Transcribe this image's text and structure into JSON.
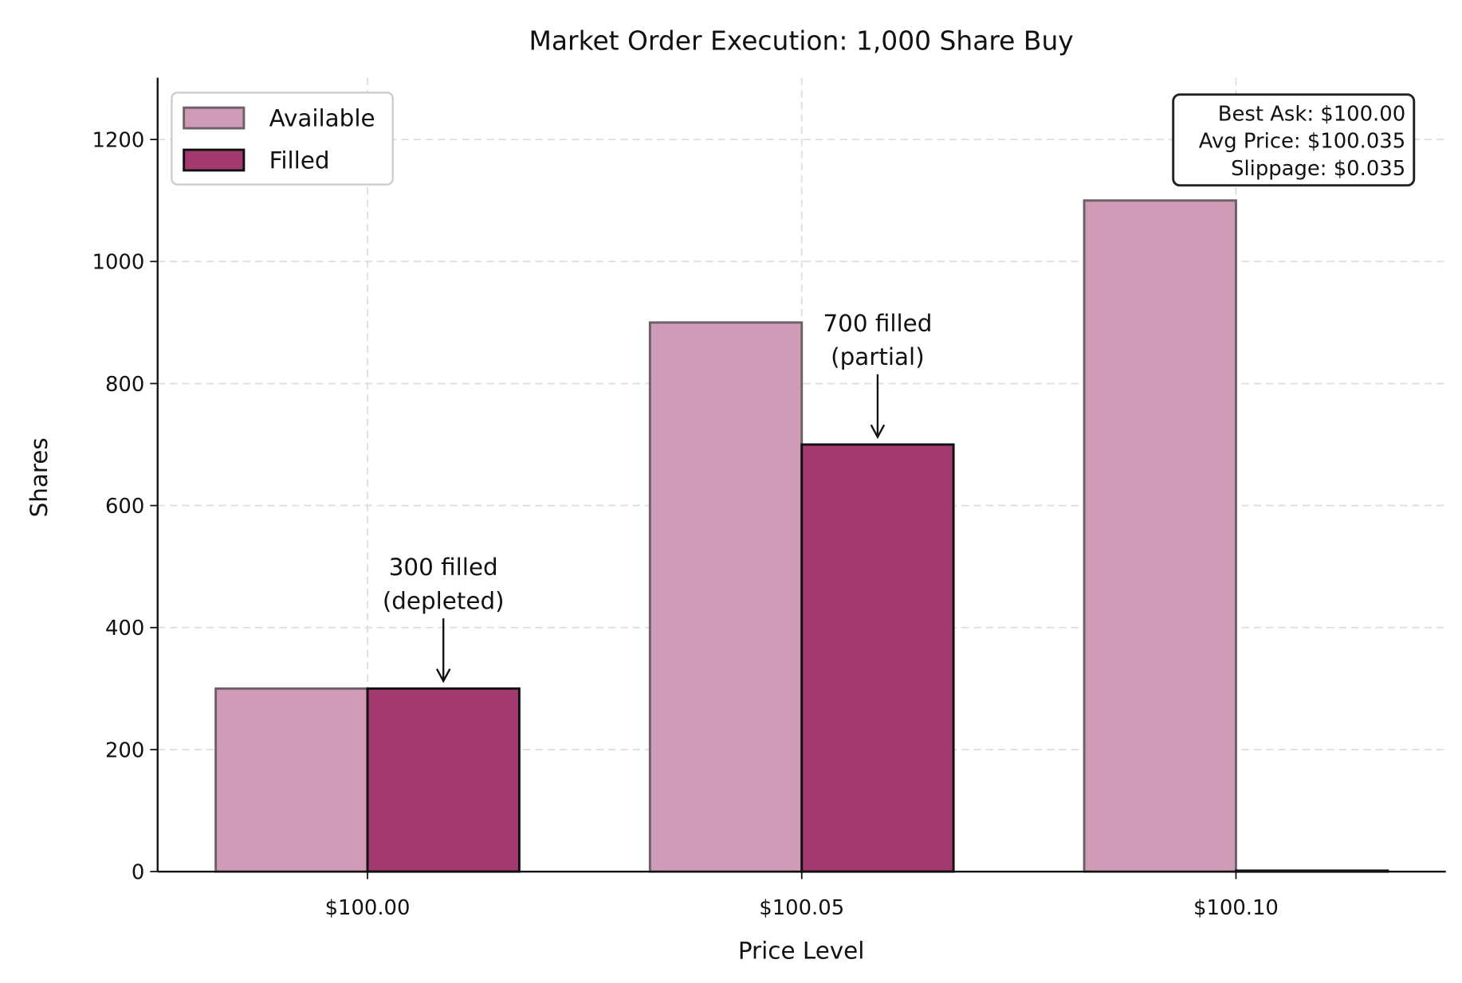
{
  "chart_data": {
    "type": "bar",
    "title": "Market Order Execution: 1,000 Share Buy",
    "xlabel": "Price Level",
    "ylabel": "Shares",
    "categories": [
      "$100.00",
      "$100.05",
      "$100.10"
    ],
    "series": [
      {
        "name": "Available",
        "values": [
          300,
          900,
          1100
        ],
        "color": "#d09bb7"
      },
      {
        "name": "Filled",
        "values": [
          300,
          700,
          0
        ],
        "color": "#a23a6f"
      }
    ],
    "ylim": [
      0,
      1300
    ],
    "yticks": [
      0,
      200,
      400,
      600,
      800,
      1000,
      1200
    ],
    "grid": true,
    "legend_position": "top-left",
    "annotations": [
      {
        "category": "$100.00",
        "value": 300,
        "lines": [
          "300 filled",
          "(depleted)"
        ]
      },
      {
        "category": "$100.05",
        "value": 700,
        "lines": [
          "700 filled",
          "(partial)"
        ]
      }
    ],
    "info_box": {
      "position": "top-right",
      "lines": [
        "Best Ask: $100.00",
        "Avg Price: $100.035",
        "Slippage: $0.035"
      ]
    }
  }
}
